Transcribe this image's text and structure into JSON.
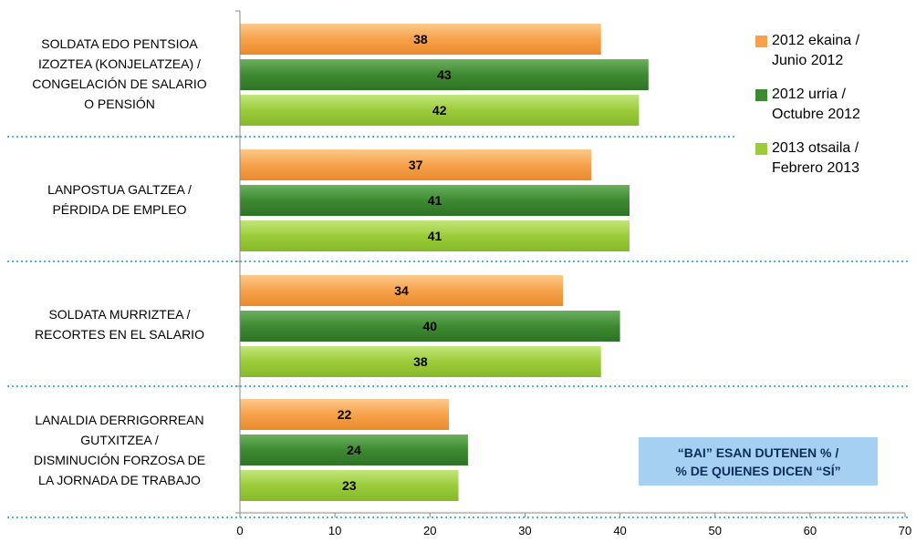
{
  "chart_data": {
    "type": "bar",
    "orientation": "horizontal",
    "categories": [
      "SOLDATA EDO PENTSIOA IZOZTEA (KONJELATZEA) / CONGELACIÓN DE SALARIO O PENSIÓN",
      "LANPOSTUA GALTZEA / PÉRDIDA DE EMPLEO",
      "SOLDATA MURRIZTEA / RECORTES EN EL SALARIO",
      "LANALDIA DERRIGORREAN GUTXITZEA / DISMINUCIÓN FORZOSA DE LA JORNADA DE TRABAJO"
    ],
    "category_lines": [
      [
        "SOLDATA EDO PENTSIOA",
        "IZOZTEA (KONJELATZEA) /",
        "CONGELACIÓN DE SALARIO",
        "O PENSIÓN"
      ],
      [
        "LANPOSTUA GALTZEA /",
        "PÉRDIDA DE EMPLEO"
      ],
      [
        "SOLDATA MURRIZTEA /",
        "RECORTES EN EL SALARIO"
      ],
      [
        "LANALDIA DERRIGORREAN",
        "GUTXITZEA /",
        "DISMINUCIÓN FORZOSA DE",
        "LA JORNADA DE TRABAJO"
      ]
    ],
    "series": [
      {
        "name": "2012 ekaina / Junio 2012",
        "name_lines": [
          "2012 ekaina /",
          "Junio 2012"
        ],
        "values": [
          38,
          37,
          34,
          22
        ],
        "color": "#f7a24b"
      },
      {
        "name": "2012 urria / Octubre 2012",
        "name_lines": [
          "2012 urria /",
          "Octubre 2012"
        ],
        "values": [
          43,
          41,
          40,
          24
        ],
        "color": "#3e8a32"
      },
      {
        "name": "2013 otsaila / Febrero 2013",
        "name_lines": [
          "2013 otsaila /",
          "Febrero 2013"
        ],
        "values": [
          42,
          41,
          38,
          23
        ],
        "color": "#9ccc3a"
      }
    ],
    "xlim": [
      0,
      70
    ],
    "x_ticks": [
      0,
      10,
      20,
      30,
      40,
      50,
      60,
      70
    ],
    "legend_position": "right",
    "grid": false,
    "annotation_lines": [
      "“BAI” ESAN DUTENEN % /",
      "% DE QUIENES DICEN “SÍ”"
    ],
    "annotation_color": "#a6d0f2",
    "separator_color": "#4ab8d8"
  }
}
